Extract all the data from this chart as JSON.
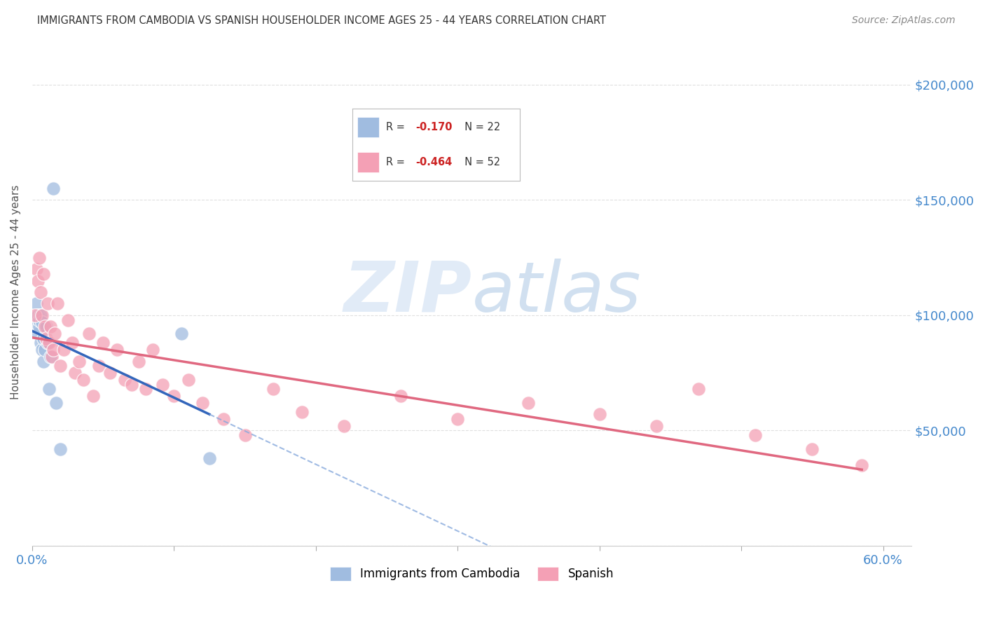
{
  "title": "IMMIGRANTS FROM CAMBODIA VS SPANISH HOUSEHOLDER INCOME AGES 25 - 44 YEARS CORRELATION CHART",
  "source": "Source: ZipAtlas.com",
  "ylabel": "Householder Income Ages 25 - 44 years",
  "watermark": "ZIPatlas",
  "xlim": [
    0.0,
    0.62
  ],
  "ylim": [
    0,
    220000
  ],
  "cambodia_color": "#a0bce0",
  "spanish_color": "#f4a0b5",
  "cambodia_R": -0.17,
  "cambodia_N": 22,
  "spanish_R": -0.464,
  "spanish_N": 52,
  "cambodia_x": [
    0.002,
    0.003,
    0.004,
    0.004,
    0.005,
    0.005,
    0.006,
    0.006,
    0.007,
    0.007,
    0.008,
    0.008,
    0.009,
    0.01,
    0.011,
    0.012,
    0.013,
    0.015,
    0.017,
    0.02,
    0.105,
    0.125
  ],
  "cambodia_y": [
    97000,
    105000,
    92000,
    100000,
    95000,
    98000,
    88000,
    100000,
    85000,
    97000,
    80000,
    90000,
    85000,
    95000,
    88000,
    68000,
    82000,
    155000,
    62000,
    42000,
    92000,
    38000
  ],
  "spanish_x": [
    0.002,
    0.003,
    0.004,
    0.005,
    0.006,
    0.007,
    0.008,
    0.009,
    0.01,
    0.011,
    0.012,
    0.013,
    0.014,
    0.015,
    0.016,
    0.018,
    0.02,
    0.022,
    0.025,
    0.028,
    0.03,
    0.033,
    0.036,
    0.04,
    0.043,
    0.047,
    0.05,
    0.055,
    0.06,
    0.065,
    0.07,
    0.075,
    0.08,
    0.085,
    0.092,
    0.1,
    0.11,
    0.12,
    0.135,
    0.15,
    0.17,
    0.19,
    0.22,
    0.26,
    0.3,
    0.35,
    0.4,
    0.44,
    0.47,
    0.51,
    0.55,
    0.585
  ],
  "spanish_y": [
    100000,
    120000,
    115000,
    125000,
    110000,
    100000,
    118000,
    95000,
    90000,
    105000,
    88000,
    95000,
    82000,
    85000,
    92000,
    105000,
    78000,
    85000,
    98000,
    88000,
    75000,
    80000,
    72000,
    92000,
    65000,
    78000,
    88000,
    75000,
    85000,
    72000,
    70000,
    80000,
    68000,
    85000,
    70000,
    65000,
    72000,
    62000,
    55000,
    48000,
    68000,
    58000,
    52000,
    65000,
    55000,
    62000,
    57000,
    52000,
    68000,
    48000,
    42000,
    35000
  ],
  "background_color": "#ffffff",
  "grid_color": "#cccccc",
  "title_color": "#333333",
  "source_color": "#888888",
  "right_label_color": "#4488cc",
  "tick_label_color": "#4488cc"
}
